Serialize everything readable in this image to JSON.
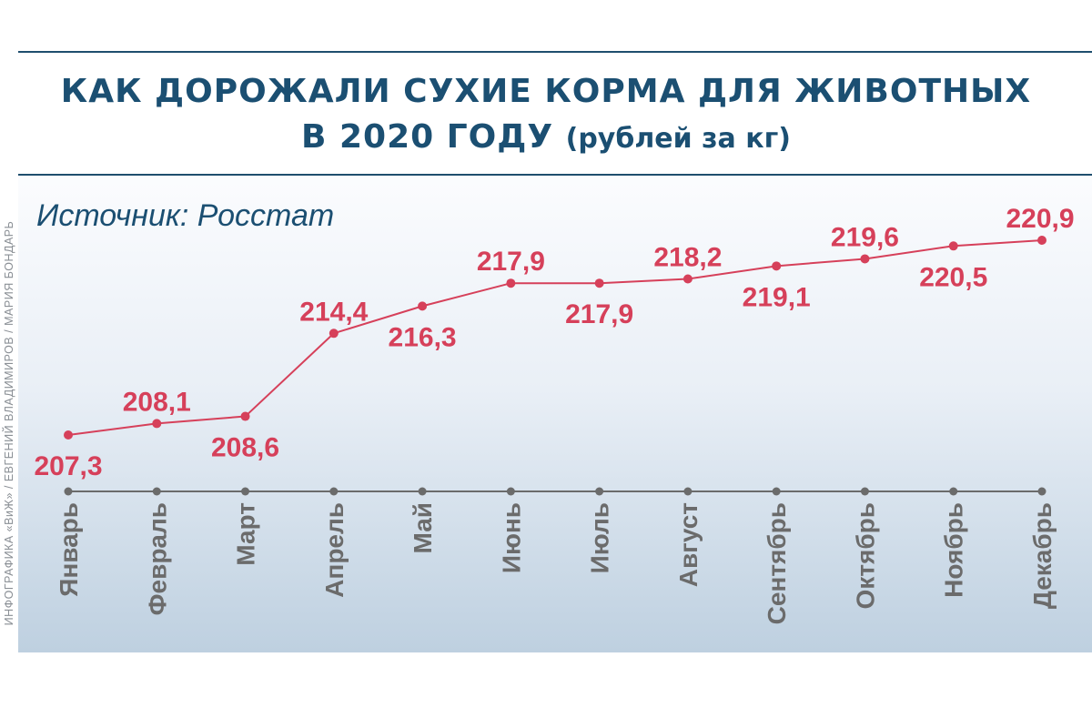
{
  "header": {
    "title_line1": "КАК ДОРОЖАЛИ СУХИЕ КОРМА ДЛЯ ЖИВОТНЫХ",
    "title_line2_main": "В 2020 ГОДУ",
    "title_line2_sub": "(рублей за кг)"
  },
  "source": "Источник: Росстат",
  "credit": "ИНФОГРАФИКА «ВиЖ» / ЕВГЕНИЙ ВЛАДИМИРОВ / МАРИЯ БОНДАРЬ",
  "colors": {
    "title": "#1b4f72",
    "line": "#d6405a",
    "axis": "#6b6b6b"
  },
  "chart_data": {
    "type": "line",
    "title": "КАК ДОРОЖАЛИ СУХИЕ КОРМА ДЛЯ ЖИВОТНЫХ В 2020 ГОДУ (рублей за кг)",
    "categories": [
      "Январь",
      "Февраль",
      "Март",
      "Апрель",
      "Май",
      "Июнь",
      "Июль",
      "Август",
      "Сентябрь",
      "Октябрь",
      "Ноябрь",
      "Декабрь"
    ],
    "series": [
      {
        "values": [
          207.3,
          208.1,
          208.6,
          214.4,
          216.3,
          217.9,
          217.9,
          218.2,
          219.1,
          219.6,
          220.5,
          220.9
        ],
        "labels": [
          "207,3",
          "208,1",
          "208,6",
          "214,4",
          "216,3",
          "217,9",
          "217,9",
          "218,2",
          "219,1",
          "219,6",
          "220,5",
          "220,9"
        ],
        "label_position": [
          "below",
          "above",
          "below",
          "above",
          "below",
          "above",
          "below",
          "above",
          "below",
          "above",
          "below",
          "above"
        ]
      }
    ],
    "grid": false,
    "legend": "none"
  }
}
